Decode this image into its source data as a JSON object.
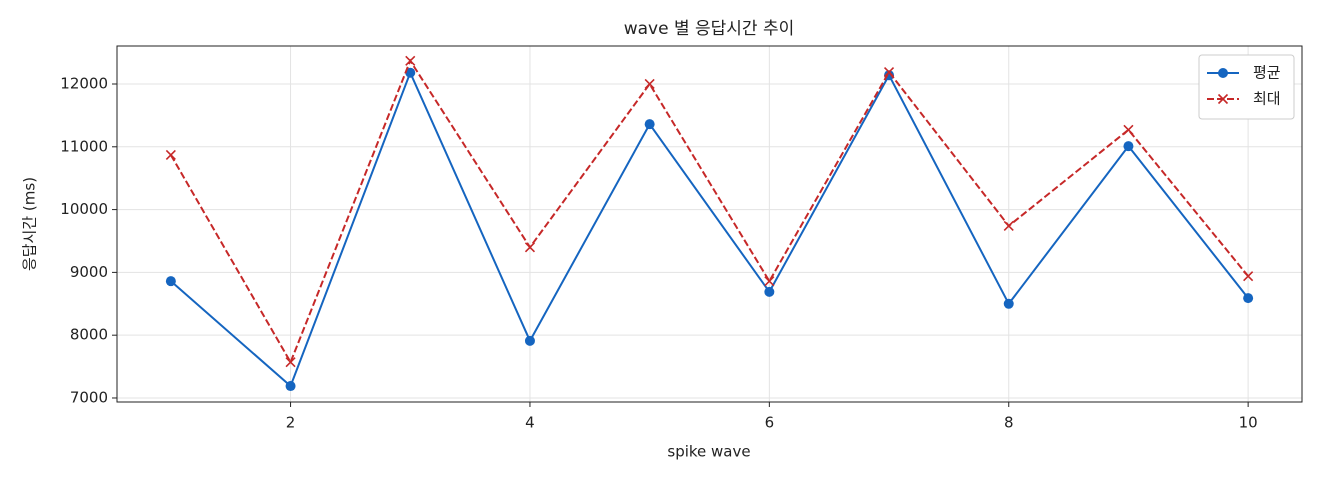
{
  "chart_data": {
    "type": "line",
    "title": "wave 별 응답시간 추이",
    "xlabel": "spike wave",
    "ylabel": "응답시간 (ms)",
    "x": [
      1,
      2,
      3,
      4,
      5,
      6,
      7,
      8,
      9,
      10
    ],
    "series": [
      {
        "name": "평균",
        "color": "#1565c0",
        "linestyle": "solid",
        "marker": "o",
        "values": [
          8860,
          7190,
          12180,
          7910,
          11360,
          8690,
          12140,
          8500,
          11010,
          8590
        ]
      },
      {
        "name": "최대",
        "color": "#c62828",
        "linestyle": "dashed",
        "marker": "x",
        "values": [
          10870,
          7570,
          12370,
          9400,
          12000,
          8860,
          12190,
          9740,
          11270,
          8940
        ]
      }
    ],
    "xlim": [
      0.55,
      10.45
    ],
    "ylim": [
      6936,
      12605
    ],
    "xticks": [
      2,
      4,
      6,
      8,
      10
    ],
    "yticks": [
      7000,
      8000,
      9000,
      10000,
      11000,
      12000
    ],
    "grid": true,
    "legend": "upper right"
  }
}
